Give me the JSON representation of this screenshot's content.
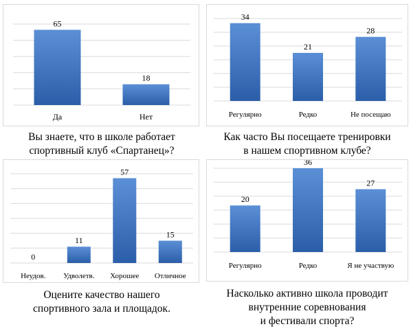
{
  "colors": {
    "bar_top": "#5b8fd6",
    "bar_bottom": "#2b5ea8",
    "grid": "#d9d9d9",
    "frame": "#d9d9d9"
  },
  "chart_data": [
    {
      "type": "bar",
      "categories": [
        "Да",
        "Нет"
      ],
      "values": [
        65,
        18
      ],
      "data_labels": [
        "65",
        "18"
      ],
      "ylim": [
        0,
        70
      ],
      "grid": true,
      "caption": [
        "Вы знаете, что в школе работает",
        "спортивный клуб «Спартанец»?"
      ]
    },
    {
      "type": "bar",
      "categories": [
        "Регулярно",
        "Редко",
        "Не посещаю"
      ],
      "values": [
        34,
        21,
        28
      ],
      "data_labels": [
        "34",
        "21",
        "28"
      ],
      "ylim": [
        0,
        36
      ],
      "grid": true,
      "caption": [
        "Как часто Вы посещаете тренировки",
        "в нашем спортивном клубе?"
      ]
    },
    {
      "type": "bar",
      "categories": [
        "Неудов.",
        "Удволетв.",
        "Хорошее",
        "Отличное"
      ],
      "values": [
        0,
        11,
        57,
        15
      ],
      "data_labels": [
        "0",
        "11",
        "57",
        "15"
      ],
      "ylim": [
        0,
        60
      ],
      "grid": true,
      "caption": [
        "Оцените качество нашего",
        "спортивного зала и площадок."
      ]
    },
    {
      "type": "bar",
      "categories": [
        "Регулярно",
        "Редко",
        "Я не участвую"
      ],
      "values": [
        20,
        36,
        27
      ],
      "data_labels": [
        "20",
        "36",
        "27"
      ],
      "ylim": [
        0,
        36
      ],
      "grid": true,
      "caption": [
        "Насколько активно школа проводит",
        "внутренние соревнования",
        "и фестивали спорта?"
      ]
    }
  ]
}
